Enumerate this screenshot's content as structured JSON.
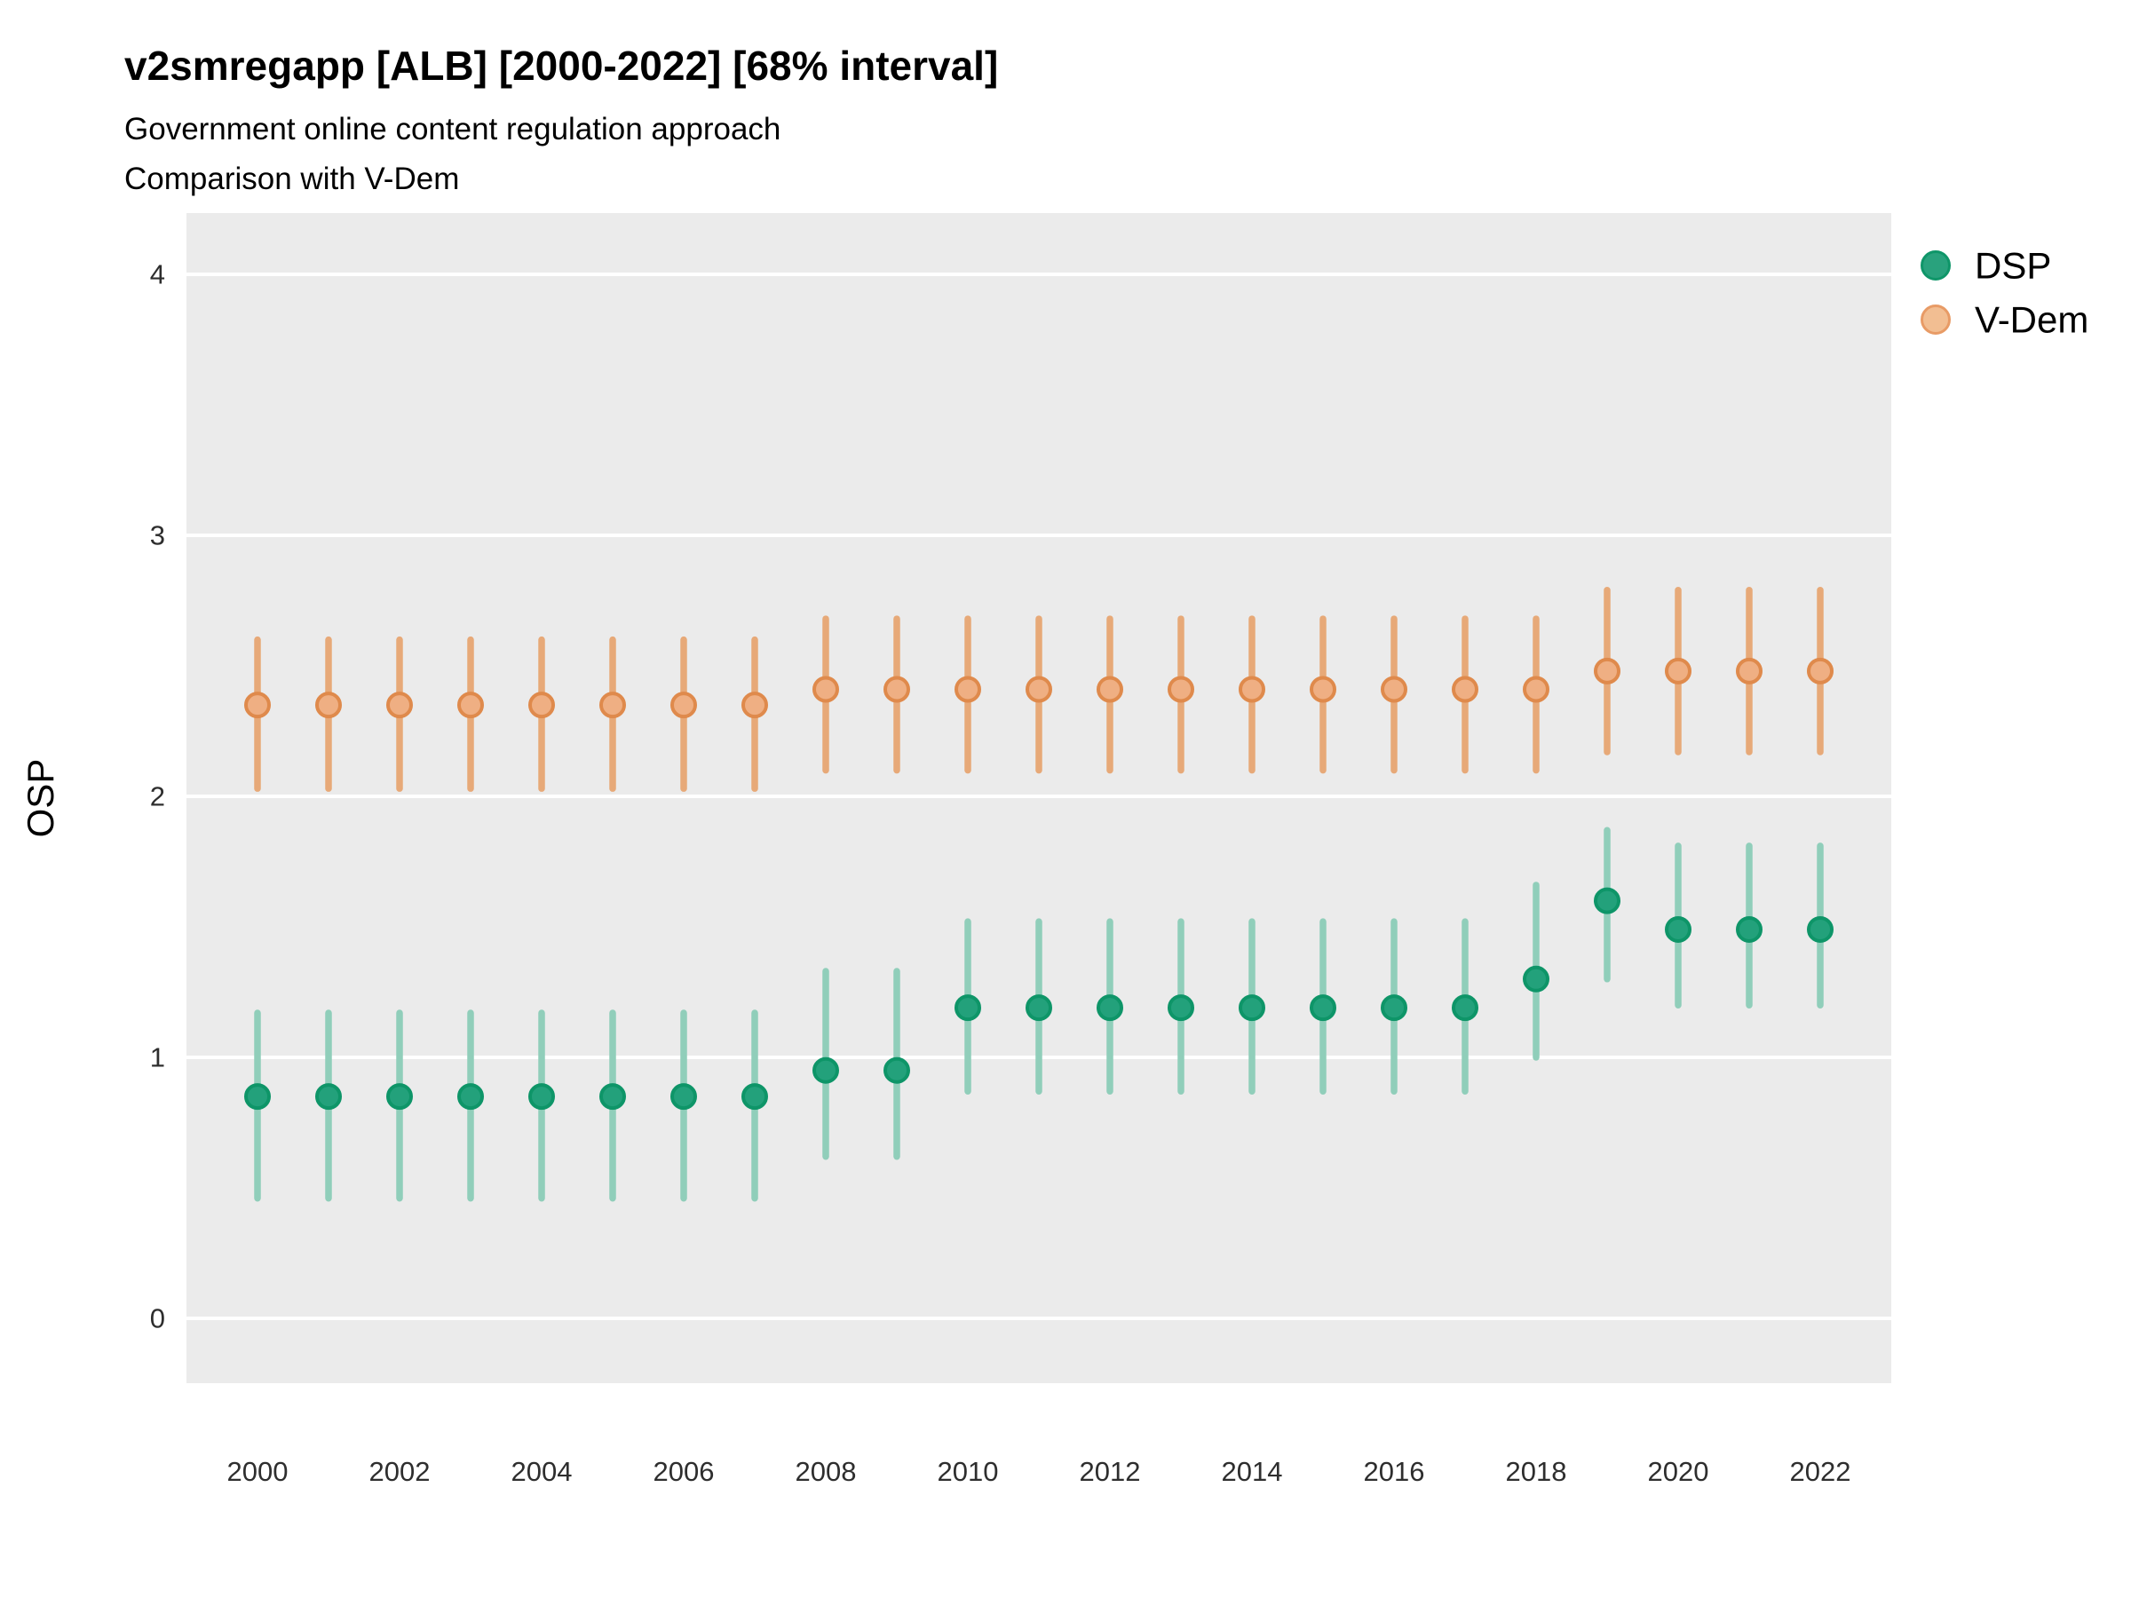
{
  "title": "v2smregapp [ALB] [2000-2022] [68% interval]",
  "subtitle_line1": "Government online content regulation approach",
  "subtitle_line2": "Comparison with V-Dem",
  "colors": {
    "background": "#FFFFFF",
    "panel": "#EBEBEB",
    "gridline": "#FFFFFF",
    "dsp_point": "#23A17B",
    "dsp_point_border": "#0E9568",
    "dsp_interval": "#90CEBA",
    "vdem_point": "#EFAF83",
    "vdem_point_border": "#DF8A4C",
    "vdem_interval": "#E7A978",
    "title_text": "#000000",
    "tick_text": "#2E2E2E"
  },
  "legend": {
    "position": "right",
    "items": [
      {
        "label": "DSP",
        "fill": "#29A27D",
        "border": "#0F9669"
      },
      {
        "label": "V-Dem",
        "fill": "#F2BE92",
        "border": "#E89B66"
      }
    ]
  },
  "y_axis": {
    "label": "OSP",
    "tick_labels": [
      "0",
      "1",
      "2",
      "3",
      "4"
    ],
    "tick_values": [
      0,
      1,
      2,
      3,
      4
    ],
    "domain": [
      -0.25,
      4.24
    ],
    "grid": "horizontal-major-only"
  },
  "x_axis": {
    "label": "",
    "tick_labels": [
      "2000",
      "2002",
      "2004",
      "2006",
      "2008",
      "2010",
      "2012",
      "2014",
      "2016",
      "2018",
      "2020",
      "2022"
    ],
    "tick_values": [
      2000,
      2002,
      2004,
      2006,
      2008,
      2010,
      2012,
      2014,
      2016,
      2018,
      2020,
      2022
    ],
    "domain": [
      1999,
      2023
    ]
  },
  "chart_data": {
    "type": "pointrange",
    "title": "v2smregapp [ALB] [2000-2022] [68% interval]",
    "subtitle": "Government online content regulation approach / Comparison with V-Dem",
    "interval_level": "68%",
    "xlabel": "",
    "ylabel": "OSP",
    "ylim": [
      -0.25,
      4.24
    ],
    "x": [
      2000,
      2001,
      2002,
      2003,
      2004,
      2005,
      2006,
      2007,
      2008,
      2009,
      2010,
      2011,
      2012,
      2013,
      2014,
      2015,
      2016,
      2017,
      2018,
      2019,
      2020,
      2021,
      2022
    ],
    "series": [
      {
        "name": "DSP",
        "point_color": "#23A17B",
        "point_border": "#0E9568",
        "line_color": "#90CEBA",
        "est": [
          0.85,
          0.85,
          0.85,
          0.85,
          0.85,
          0.85,
          0.85,
          0.85,
          0.95,
          0.95,
          1.19,
          1.19,
          1.19,
          1.19,
          1.19,
          1.19,
          1.19,
          1.19,
          1.3,
          1.6,
          1.49,
          1.49,
          1.49
        ],
        "lo": [
          0.46,
          0.46,
          0.46,
          0.46,
          0.46,
          0.46,
          0.46,
          0.46,
          0.62,
          0.62,
          0.87,
          0.87,
          0.87,
          0.87,
          0.87,
          0.87,
          0.87,
          0.87,
          1.0,
          1.3,
          1.2,
          1.2,
          1.2
        ],
        "hi": [
          1.17,
          1.17,
          1.17,
          1.17,
          1.17,
          1.17,
          1.17,
          1.17,
          1.33,
          1.33,
          1.52,
          1.52,
          1.52,
          1.52,
          1.52,
          1.52,
          1.52,
          1.52,
          1.66,
          1.87,
          1.81,
          1.81,
          1.81
        ]
      },
      {
        "name": "V-Dem",
        "point_color": "#EFAF83",
        "point_border": "#DF8A4C",
        "line_color": "#E7A978",
        "est": [
          2.35,
          2.35,
          2.35,
          2.35,
          2.35,
          2.35,
          2.35,
          2.35,
          2.41,
          2.41,
          2.41,
          2.41,
          2.41,
          2.41,
          2.41,
          2.41,
          2.41,
          2.41,
          2.41,
          2.48,
          2.48,
          2.48,
          2.48
        ],
        "lo": [
          2.03,
          2.03,
          2.03,
          2.03,
          2.03,
          2.03,
          2.03,
          2.03,
          2.1,
          2.1,
          2.1,
          2.1,
          2.1,
          2.1,
          2.1,
          2.1,
          2.1,
          2.1,
          2.1,
          2.17,
          2.17,
          2.17,
          2.17
        ],
        "hi": [
          2.6,
          2.6,
          2.6,
          2.6,
          2.6,
          2.6,
          2.6,
          2.6,
          2.68,
          2.68,
          2.68,
          2.68,
          2.68,
          2.68,
          2.68,
          2.68,
          2.68,
          2.68,
          2.68,
          2.79,
          2.79,
          2.79,
          2.79
        ]
      }
    ]
  }
}
